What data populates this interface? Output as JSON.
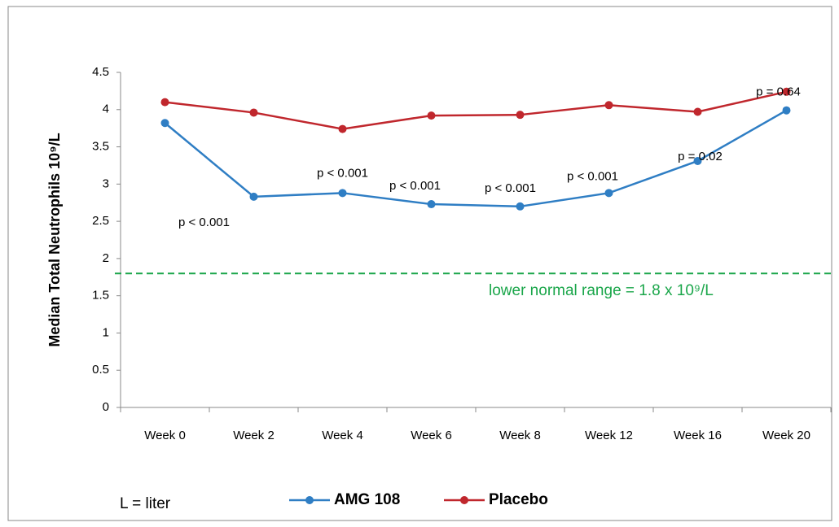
{
  "chart_data": {
    "type": "line",
    "ylabel": "Median Total Neutrophils 10⁹/L",
    "categories": [
      "Week 0",
      "Week 2",
      "Week 4",
      "Week 6",
      "Week 8",
      "Week 12",
      "Week 16",
      "Week 20"
    ],
    "series": [
      {
        "name": "AMG 108",
        "color": "#2f7ec4",
        "values": [
          3.82,
          2.83,
          2.88,
          2.73,
          2.7,
          2.88,
          3.31,
          3.99
        ]
      },
      {
        "name": "Placebo",
        "color": "#c0272d",
        "values": [
          4.1,
          3.96,
          3.74,
          3.92,
          3.93,
          4.06,
          3.97,
          4.24
        ]
      }
    ],
    "p_values": [
      null,
      "p < 0.001",
      "p < 0.001",
      "p < 0.001",
      "p < 0.001",
      "p < 0.001",
      "p = 0.02",
      "p = 0.64"
    ],
    "reference_line": {
      "value": 1.8,
      "label": "lower normal range = 1.8 x 10⁹/L",
      "color": "#1aa64a"
    },
    "ylim": [
      0,
      4.5
    ],
    "yticks": [
      0,
      0.5,
      1,
      1.5,
      2,
      2.5,
      3,
      3.5,
      4,
      4.5
    ],
    "footnote": "L = liter",
    "legend": "bottom"
  }
}
